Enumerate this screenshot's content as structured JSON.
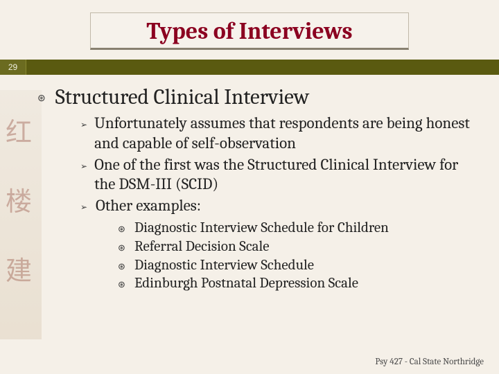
{
  "title": "Types of Interviews",
  "page_number": "29",
  "colors": {
    "title_color": "#8b0020",
    "bar_color": "#5a5a10",
    "pagenum_cell": "#6b6b20",
    "background": "#f5f0e8",
    "text_color": "#222222"
  },
  "fonts": {
    "title_size": 34,
    "level1_size": 31,
    "level2_size": 23,
    "level3_size": 21,
    "footer_size": 13
  },
  "level1": {
    "text": "Structured Clinical Interview"
  },
  "level2": [
    {
      "text": "Unfortunately assumes that respondents are being honest and capable of self-observation"
    },
    {
      "text": "One of the first was the Structured Clinical Interview for the DSM-III (SCID)"
    },
    {
      "text": "Other examples:"
    }
  ],
  "level3": [
    {
      "text": "Diagnostic Interview Schedule for Children"
    },
    {
      "text": "Referral Decision Scale"
    },
    {
      "text": "Diagnostic Interview Schedule"
    },
    {
      "text": "Edinburgh Postnatal Depression Scale"
    }
  ],
  "footer": "Psy 427 - Cal State Northridge",
  "bg_chars": [
    "红",
    "楼",
    "建"
  ]
}
